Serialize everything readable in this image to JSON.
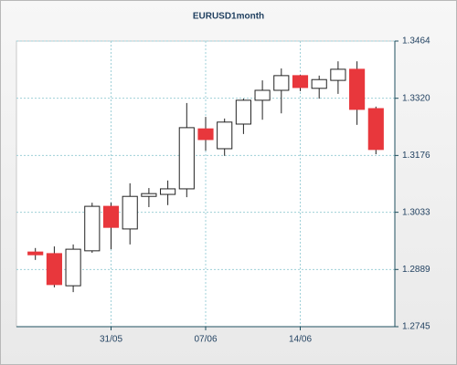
{
  "chart_data": {
    "type": "candlestick",
    "title": "EURUSD1month",
    "categories": [
      null,
      null,
      null,
      null,
      "31/05",
      null,
      null,
      null,
      null,
      "07/06",
      null,
      null,
      null,
      null,
      "14/06",
      null,
      null,
      null,
      null
    ],
    "open": [
      1.2933,
      1.2929,
      1.2848,
      1.2936,
      1.3048,
      1.2991,
      1.3073,
      1.3078,
      1.3092,
      1.3243,
      1.3193,
      1.3255,
      1.3315,
      1.334,
      1.3377,
      1.3345,
      1.3365,
      1.3393,
      1.3294
    ],
    "high": [
      1.2943,
      1.2947,
      1.2952,
      1.3057,
      1.3057,
      1.3106,
      1.3094,
      1.3113,
      1.3308,
      1.3273,
      1.3269,
      1.3319,
      1.3365,
      1.3395,
      1.3379,
      1.3377,
      1.3413,
      1.3413,
      1.3299
    ],
    "low": [
      1.2913,
      1.2844,
      1.2832,
      1.2931,
      1.294,
      1.2952,
      1.3046,
      1.3051,
      1.3071,
      1.3188,
      1.3175,
      1.323,
      1.3266,
      1.3282,
      1.3338,
      1.3319,
      1.3331,
      1.3253,
      1.3179
    ],
    "close": [
      1.2926,
      1.2851,
      1.294,
      1.3048,
      1.2995,
      1.3073,
      1.308,
      1.3092,
      1.3246,
      1.3216,
      1.326,
      1.3315,
      1.334,
      1.3377,
      1.3347,
      1.3367,
      1.3393,
      1.3292,
      1.3191
    ],
    "up_color": "#ffffff",
    "down_color": "#e8373c",
    "ylim": [
      1.2745,
      1.3464
    ],
    "yticks": [
      1.2745,
      1.2889,
      1.3033,
      1.3176,
      {
        "value": 1.332,
        "label": "1.3320"
      },
      1.3464
    ],
    "grid": true
  }
}
